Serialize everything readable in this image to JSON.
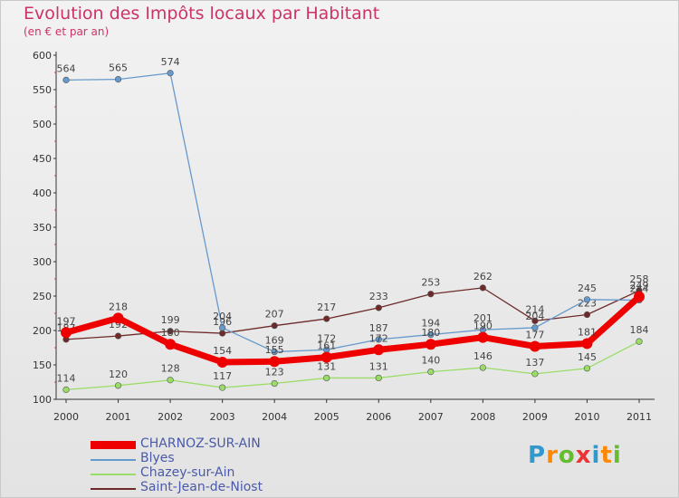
{
  "chart_data": {
    "type": "line",
    "title": "Evolution des Impôts locaux par Habitant",
    "subtitle": "(en € et par an)",
    "xlabel": "",
    "ylabel": "",
    "ylim": [
      100,
      600
    ],
    "yticks": [
      "100",
      "150",
      "200",
      "250",
      "300",
      "350",
      "400",
      "450",
      "500",
      "550",
      "600"
    ],
    "categories": [
      "2000",
      "2001",
      "2002",
      "2003",
      "2004",
      "2005",
      "2006",
      "2007",
      "2008",
      "2009",
      "2010",
      "2011"
    ],
    "series": [
      {
        "name": "Saint-Jean-de-Niost",
        "color": "#6e2a2a",
        "values": [
          187,
          192,
          199,
          196,
          207,
          217,
          233,
          253,
          262,
          214,
          223,
          258
        ],
        "labels": [
          "187",
          "192",
          "199",
          "196",
          "207",
          "217",
          "233",
          "253",
          "262",
          "214",
          "223",
          "258"
        ]
      },
      {
        "name": "Chazey-sur-Ain",
        "color": "#99dd66",
        "values": [
          114,
          120,
          128,
          117,
          123,
          131,
          131,
          140,
          146,
          137,
          145,
          184
        ],
        "labels": [
          "114",
          "120",
          "128",
          "117",
          "123",
          "131",
          "131",
          "140",
          "146",
          "137",
          "145",
          "184"
        ]
      },
      {
        "name": "Blyes",
        "color": "#6699cc",
        "values": [
          564,
          565,
          574,
          204,
          169,
          172,
          187,
          194,
          201,
          204,
          245,
          244
        ],
        "labels": [
          "564",
          "565",
          "574",
          "204",
          "169",
          "172",
          "187",
          "194",
          "201",
          "204",
          "245",
          "244"
        ]
      },
      {
        "name": "CHARNOZ-SUR-AIN",
        "color": "#ee0000",
        "values": [
          197,
          218,
          180,
          154,
          155,
          161,
          172,
          180,
          190,
          177,
          181,
          249
        ],
        "labels": [
          "197",
          "218",
          "180",
          "154",
          "155",
          "161",
          "172",
          "180",
          "190",
          "177",
          "181",
          "249"
        ]
      }
    ],
    "legend": [
      "CHARNOZ-SUR-AIN",
      "Blyes",
      "Chazey-sur-Ain",
      "Saint-Jean-de-Niost"
    ],
    "grid": false
  },
  "logo": {
    "letters": [
      "P",
      "r",
      "o",
      "x",
      "i",
      "t",
      "i"
    ],
    "colors": [
      "#3399cc",
      "#ff8800",
      "#66bb33",
      "#ee3333",
      "#3399cc",
      "#ff8800",
      "#66bb33"
    ]
  }
}
